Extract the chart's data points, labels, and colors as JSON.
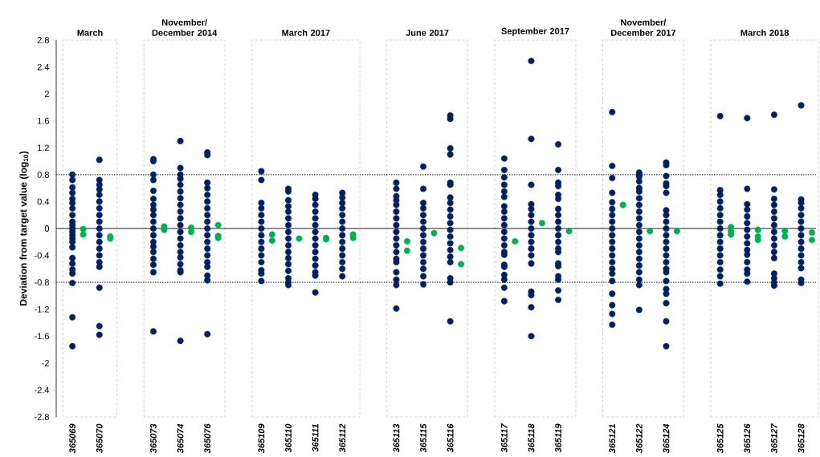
{
  "chart_data": {
    "type": "scatter",
    "ylabel": "Deviation from target value (log$_{10}$)",
    "categories": [
      "365069",
      "365070",
      null,
      "365073",
      "365074",
      "365076",
      null,
      "365109",
      "365110",
      "365111",
      "365112",
      null,
      "365113",
      "365115",
      "365116",
      null,
      "365117",
      "365118",
      "365119",
      null,
      "365121",
      "365122",
      "365124",
      null,
      "365125",
      "365126",
      "365127",
      "365128"
    ],
    "ylim": [
      -2.8,
      2.8
    ],
    "yticks": [
      -2.8,
      -2.4,
      -2,
      -1.6,
      -1.2,
      -0.8,
      -0.4,
      0,
      0.4,
      0.8,
      1.2,
      1.6,
      2,
      2.4,
      2.8
    ],
    "grid": false,
    "marker": "circle",
    "annotations": [
      "March",
      "November/ December 2014",
      "March 2017",
      "June 2017",
      "September 2017",
      "November/ December 2017",
      "March 2018"
    ],
    "series": [
      {
        "color": "#002060",
        "x": [
          "365069",
          "365069",
          "365069",
          "365069",
          "365069",
          "365069",
          "365069",
          "365069",
          "365069",
          "365069",
          "365069",
          "365069",
          "365069",
          "365069",
          "365069",
          "365069",
          "365069",
          "365069",
          "365069",
          "365069",
          "365069",
          "365069",
          "365069",
          "365070",
          "365070",
          "365070",
          "365070",
          "365070",
          "365070",
          "365070",
          "365070",
          "365070",
          "365070",
          "365070",
          "365070",
          "365070",
          "365070",
          "365070",
          "365070",
          "365070",
          "365070",
          "365070",
          "365073",
          "365073",
          "365073",
          "365073",
          "365073",
          "365073",
          "365073",
          "365073",
          "365073",
          "365073",
          "365073",
          "365073",
          "365073",
          "365073",
          "365073",
          "365073",
          "365073",
          "365073",
          "365073",
          "365074",
          "365074",
          "365074",
          "365074",
          "365074",
          "365074",
          "365074",
          "365074",
          "365074",
          "365074",
          "365074",
          "365074",
          "365074",
          "365074",
          "365074",
          "365074",
          "365074",
          "365074",
          "365074",
          "365074",
          "365076",
          "365076",
          "365076",
          "365076",
          "365076",
          "365076",
          "365076",
          "365076",
          "365076",
          "365076",
          "365076",
          "365076",
          "365076",
          "365076",
          "365076",
          "365076",
          "365076",
          "365076",
          "365076",
          "365109",
          "365109",
          "365109",
          "365109",
          "365109",
          "365109",
          "365109",
          "365109",
          "365109",
          "365109",
          "365109",
          "365109",
          "365109",
          "365109",
          "365109",
          "365110",
          "365110",
          "365110",
          "365110",
          "365110",
          "365110",
          "365110",
          "365110",
          "365110",
          "365110",
          "365110",
          "365110",
          "365110",
          "365110",
          "365110",
          "365110",
          "365110",
          "365111",
          "365111",
          "365111",
          "365111",
          "365111",
          "365111",
          "365111",
          "365111",
          "365111",
          "365111",
          "365111",
          "365111",
          "365111",
          "365111",
          "365111",
          "365112",
          "365112",
          "365112",
          "365112",
          "365112",
          "365112",
          "365112",
          "365112",
          "365112",
          "365112",
          "365112",
          "365112",
          "365112",
          "365112",
          "365113",
          "365113",
          "365113",
          "365113",
          "365113",
          "365113",
          "365113",
          "365113",
          "365113",
          "365113",
          "365113",
          "365113",
          "365113",
          "365113",
          "365113",
          "365113",
          "365113",
          "365113",
          "365115",
          "365115",
          "365115",
          "365115",
          "365115",
          "365115",
          "365115",
          "365115",
          "365115",
          "365115",
          "365115",
          "365115",
          "365115",
          "365115",
          "365115",
          "365116",
          "365116",
          "365116",
          "365116",
          "365116",
          "365116",
          "365116",
          "365116",
          "365116",
          "365116",
          "365116",
          "365116",
          "365116",
          "365116",
          "365116",
          "365116",
          "365116",
          "365116",
          "365116",
          "365116",
          "365117",
          "365117",
          "365117",
          "365117",
          "365117",
          "365117",
          "365117",
          "365117",
          "365117",
          "365117",
          "365117",
          "365117",
          "365117",
          "365117",
          "365117",
          "365117",
          "365117",
          "365117",
          "365117",
          "365117",
          "365117",
          "365118",
          "365118",
          "365118",
          "365118",
          "365118",
          "365118",
          "365118",
          "365118",
          "365118",
          "365118",
          "365118",
          "365118",
          "365118",
          "365118",
          "365118",
          "365118",
          "365118",
          "365119",
          "365119",
          "365119",
          "365119",
          "365119",
          "365119",
          "365119",
          "365119",
          "365119",
          "365119",
          "365119",
          "365119",
          "365119",
          "365119",
          "365119",
          "365119",
          "365119",
          "365119",
          "365119",
          "365119",
          "365121",
          "365121",
          "365121",
          "365121",
          "365121",
          "365121",
          "365121",
          "365121",
          "365121",
          "365121",
          "365121",
          "365121",
          "365121",
          "365121",
          "365121",
          "365121",
          "365121",
          "365121",
          "365121",
          "365121",
          "365121",
          "365122",
          "365122",
          "365122",
          "365122",
          "365122",
          "365122",
          "365122",
          "365122",
          "365122",
          "365122",
          "365122",
          "365122",
          "365122",
          "365122",
          "365122",
          "365122",
          "365122",
          "365122",
          "365122",
          "365122",
          "365122",
          "365124",
          "365124",
          "365124",
          "365124",
          "365124",
          "365124",
          "365124",
          "365124",
          "365124",
          "365124",
          "365124",
          "365124",
          "365124",
          "365124",
          "365124",
          "365124",
          "365124",
          "365124",
          "365124",
          "365124",
          "365124",
          "365124",
          "365124",
          "365125",
          "365125",
          "365125",
          "365125",
          "365125",
          "365125",
          "365125",
          "365125",
          "365125",
          "365125",
          "365125",
          "365125",
          "365125",
          "365125",
          "365125",
          "365125",
          "365126",
          "365126",
          "365126",
          "365126",
          "365126",
          "365126",
          "365126",
          "365126",
          "365126",
          "365126",
          "365126",
          "365126",
          "365126",
          "365126",
          "365126",
          "365127",
          "365127",
          "365127",
          "365127",
          "365127",
          "365127",
          "365127",
          "365127",
          "365127",
          "365127",
          "365127",
          "365127",
          "365127",
          "365127",
          "365127",
          "365127",
          "365128",
          "365128",
          "365128",
          "365128",
          "365128",
          "365128",
          "365128",
          "365128",
          "365128",
          "365128",
          "365128",
          "365128",
          "365128",
          "365128",
          "365128"
        ],
        "values": [
          0.8,
          0.72,
          0.61,
          0.53,
          0.44,
          0.38,
          0.3,
          0.2,
          0.1,
          0.05,
          0,
          -0.05,
          -0.1,
          -0.15,
          -0.2,
          -0.28,
          -0.44,
          -0.52,
          -0.61,
          -0.67,
          -0.81,
          -1.32,
          -1.75,
          1.02,
          0.72,
          0.65,
          0.58,
          0.5,
          0.4,
          0.3,
          0.2,
          0.1,
          0,
          -0.1,
          -0.2,
          -0.3,
          -0.4,
          -0.5,
          -0.57,
          -0.88,
          -1.45,
          -1.58,
          1.03,
          1.0,
          0.8,
          0.72,
          0.56,
          0.44,
          0.35,
          0.28,
          0.2,
          0.1,
          0,
          -0.1,
          -0.2,
          -0.27,
          -0.35,
          -0.45,
          -0.54,
          -0.65,
          -1.53,
          1.3,
          0.9,
          0.8,
          0.74,
          0.65,
          0.55,
          0.45,
          0.35,
          0.25,
          0.15,
          0.05,
          -0.05,
          -0.15,
          -0.25,
          -0.35,
          -0.43,
          -0.53,
          -0.62,
          -0.65,
          -1.67,
          1.13,
          1.09,
          0.68,
          0.6,
          0.5,
          0.4,
          0.3,
          0.2,
          0.1,
          0,
          -0.1,
          -0.2,
          -0.3,
          -0.4,
          -0.5,
          -0.57,
          -0.7,
          -0.77,
          -1.57,
          0.85,
          0.72,
          0.38,
          0.3,
          0.2,
          0.1,
          0,
          -0.1,
          -0.2,
          -0.3,
          -0.4,
          -0.5,
          -0.62,
          -0.67,
          -0.78,
          0.59,
          0.55,
          0.42,
          0.33,
          0.25,
          0.15,
          0.05,
          -0.05,
          -0.15,
          -0.25,
          -0.35,
          -0.44,
          -0.53,
          -0.63,
          -0.74,
          -0.8,
          -0.84,
          0.5,
          0.44,
          0.35,
          0.25,
          0.15,
          0.05,
          -0.05,
          -0.15,
          -0.25,
          -0.35,
          -0.45,
          -0.55,
          -0.65,
          -0.7,
          -0.95,
          0.53,
          0.46,
          0.38,
          0.3,
          0.2,
          0.1,
          0,
          -0.1,
          -0.2,
          -0.3,
          -0.4,
          -0.5,
          -0.6,
          -0.71,
          0.68,
          0.59,
          0.48,
          0.42,
          0.35,
          0.25,
          0.15,
          0.05,
          -0.05,
          -0.15,
          -0.25,
          -0.35,
          -0.45,
          -0.5,
          -0.65,
          -0.76,
          -0.84,
          -1.19,
          0.92,
          0.59,
          0.38,
          0.3,
          0.2,
          0.1,
          0,
          -0.1,
          -0.2,
          -0.3,
          -0.4,
          -0.5,
          -0.6,
          -0.71,
          -0.83,
          1.68,
          1.63,
          1.19,
          1.1,
          0.68,
          0.65,
          0.46,
          0.38,
          0.28,
          0.18,
          0.08,
          -0.02,
          -0.12,
          -0.22,
          -0.32,
          -0.42,
          -0.5,
          -0.74,
          -0.8,
          -1.38,
          1.04,
          0.87,
          0.76,
          0.65,
          0.55,
          0.47,
          0.33,
          0.25,
          0.15,
          0.05,
          -0.05,
          -0.15,
          -0.25,
          -0.35,
          -0.39,
          -0.54,
          -0.57,
          -0.69,
          -0.76,
          -0.88,
          -1.08,
          2.49,
          1.33,
          0.65,
          0.36,
          0.29,
          0.2,
          0.1,
          0,
          -0.1,
          -0.2,
          -0.3,
          -0.4,
          -0.52,
          -0.94,
          -0.99,
          -1.17,
          -1.6,
          1.25,
          0.87,
          0.68,
          0.63,
          0.5,
          0.44,
          0.29,
          0.2,
          0.1,
          0,
          -0.1,
          -0.2,
          -0.3,
          -0.35,
          -0.52,
          -0.56,
          -0.71,
          -0.76,
          -0.92,
          -1.06,
          1.73,
          0.93,
          0.75,
          0.53,
          0.39,
          0.29,
          0.2,
          0.1,
          0,
          -0.1,
          -0.2,
          -0.3,
          -0.4,
          -0.5,
          -0.6,
          -0.67,
          -0.78,
          -0.97,
          -1.14,
          -1.27,
          -1.43,
          0.83,
          0.8,
          0.77,
          0.7,
          0.6,
          0.55,
          0.45,
          0.35,
          0.25,
          0.15,
          0.05,
          -0.05,
          -0.15,
          -0.25,
          -0.35,
          -0.45,
          -0.55,
          -0.65,
          -0.76,
          -0.84,
          -1.21,
          0.98,
          0.94,
          0.78,
          0.67,
          0.63,
          0.53,
          0.27,
          0.2,
          0.1,
          0,
          -0.1,
          -0.2,
          -0.3,
          -0.4,
          -0.5,
          -0.6,
          -0.65,
          -0.78,
          -0.9,
          -0.97,
          -1.11,
          -1.38,
          -1.75,
          1.67,
          0.57,
          0.5,
          0.4,
          0.3,
          0.2,
          0.1,
          0,
          -0.1,
          -0.2,
          -0.3,
          -0.4,
          -0.5,
          -0.61,
          -0.71,
          -0.82,
          1.64,
          0.59,
          0.36,
          0.28,
          0.18,
          0.08,
          -0.02,
          -0.12,
          -0.22,
          -0.32,
          -0.39,
          -0.5,
          -0.61,
          -0.67,
          -0.79,
          1.69,
          0.58,
          0.44,
          0.35,
          0.25,
          0.15,
          0.05,
          -0.05,
          -0.15,
          -0.25,
          -0.35,
          -0.44,
          -0.67,
          -0.74,
          -0.8,
          -0.85,
          1.83,
          0.43,
          0.38,
          0.3,
          0.2,
          0.1,
          0,
          -0.1,
          -0.2,
          -0.3,
          -0.4,
          -0.5,
          -0.59,
          -0.76,
          -0.81
        ]
      },
      {
        "color": "#00b050",
        "x": [
          "365069",
          "365069",
          "365070",
          "365070",
          "365073",
          "365073",
          "365074",
          "365074",
          "365076",
          "365076",
          "365076",
          "365109",
          "365109",
          "365110",
          "365111",
          "365111",
          "365112",
          "365112",
          "365113",
          "365113",
          "365115",
          "365116",
          "365116",
          "365117",
          "365118",
          "365119",
          "365121",
          "365122",
          "365124",
          "365125",
          "365125",
          "365125",
          "365126",
          "365126",
          "365126",
          "365127",
          "365127",
          "365128",
          "365128"
        ],
        "values": [
          -0.01,
          -0.09,
          -0.12,
          -0.15,
          0.03,
          -0.02,
          0.01,
          -0.05,
          0.05,
          -0.11,
          -0.14,
          -0.09,
          -0.18,
          -0.15,
          -0.14,
          -0.16,
          -0.09,
          -0.14,
          -0.19,
          -0.33,
          -0.07,
          -0.29,
          -0.53,
          -0.19,
          0.08,
          -0.04,
          0.35,
          -0.04,
          -0.04,
          0.02,
          -0.04,
          -0.09,
          -0.02,
          -0.12,
          -0.17,
          -0.04,
          -0.12,
          -0.06,
          -0.17
        ]
      }
    ],
    "ref_lines": [
      {
        "axis": "y",
        "value": 0,
        "color": "#000000",
        "line_style": "solid"
      },
      {
        "axis": "y",
        "value": 0.8,
        "color": "#000000",
        "line_style": "dotted"
      },
      {
        "axis": "y",
        "value": -0.8,
        "color": "#000000",
        "line_style": "dotted"
      }
    ]
  }
}
